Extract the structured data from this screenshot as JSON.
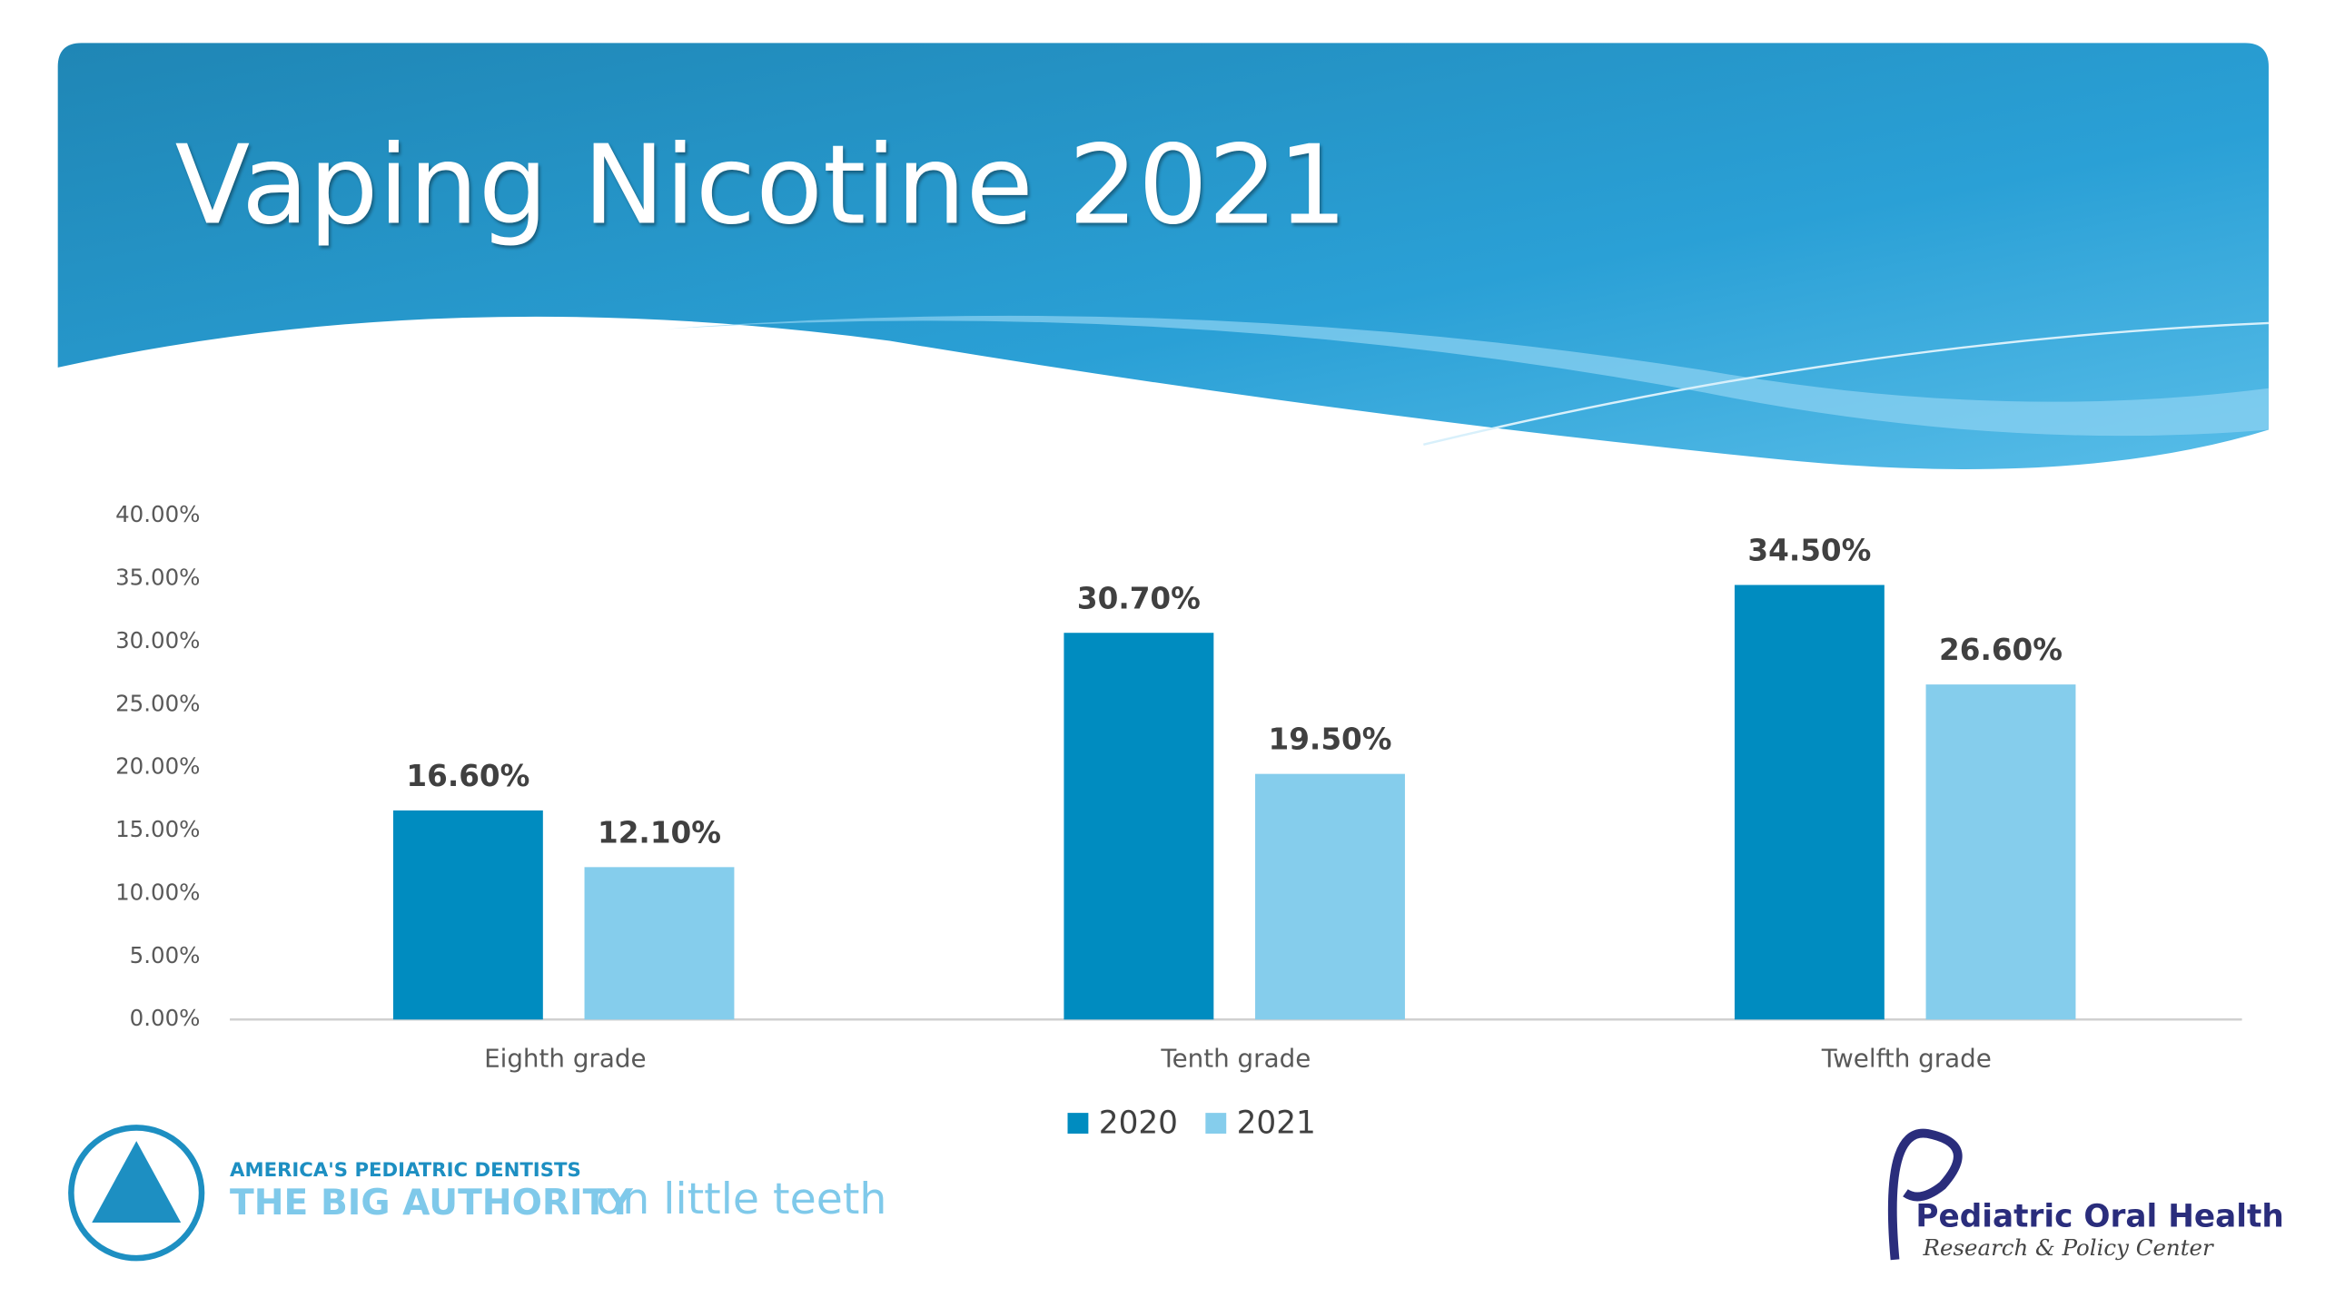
{
  "chart_data": {
    "type": "bar",
    "title": "Vaping Nicotine 2021",
    "categories": [
      "Eighth grade",
      "Tenth grade",
      "Twelfth grade"
    ],
    "series": [
      {
        "name": "2020",
        "color": "#008cc0",
        "values": [
          16.6,
          30.7,
          34.5
        ],
        "value_labels": [
          "16.60%",
          "30.70%",
          "34.50%"
        ]
      },
      {
        "name": "2021",
        "color": "#85cdec",
        "values": [
          12.1,
          19.5,
          26.6
        ],
        "value_labels": [
          "12.10%",
          "19.50%",
          "26.60%"
        ]
      }
    ],
    "ylim": [
      0,
      40
    ],
    "yticks": [
      {
        "value": 0,
        "label": "0.00%"
      },
      {
        "value": 5,
        "label": "5.00%"
      },
      {
        "value": 10,
        "label": "10.00%"
      },
      {
        "value": 15,
        "label": "15.00%"
      },
      {
        "value": 20,
        "label": "20.00%"
      },
      {
        "value": 25,
        "label": "25.00%"
      },
      {
        "value": 30,
        "label": "30.00%"
      },
      {
        "value": 35,
        "label": "35.00%"
      },
      {
        "value": 40,
        "label": "40.00%"
      }
    ],
    "grid": false,
    "legend": "bottom"
  },
  "logos": {
    "left_tagline": "AMERICA'S PEDIATRIC DENTISTS",
    "left_bold": "THE BIG AUTHORITY",
    "left_light": "on little teeth",
    "right_name": "Pediatric Oral Health",
    "right_sub": "Research & Policy Center"
  }
}
